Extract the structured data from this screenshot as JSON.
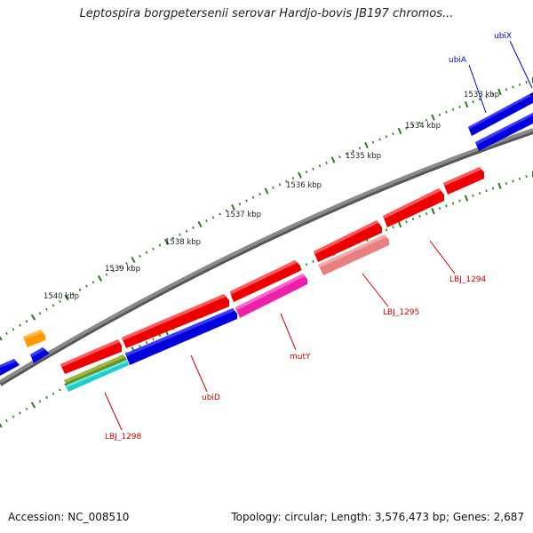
{
  "title": "Leptospira borgpetersenii serovar Hardjo-bovis JB197 chromos...",
  "footer": {
    "accession": "Accession: NC_008510",
    "summary": "Topology: circular; Length: 3,576,473 bp; Genes: 2,687"
  },
  "colors": {
    "backbone": "#808080",
    "tick": "#2a7a1f",
    "label_blue": "#0000cc",
    "label_red": "#cc0000",
    "axis_text": "#222222"
  },
  "scale_labels": [
    "1533 kbp",
    "1534 kbp",
    "1535 kbp",
    "1536 kbp",
    "1537 kbp",
    "1538 kbp",
    "1539 kbp",
    "1540 kbp"
  ],
  "gene_labels": [
    {
      "name": "ubiX",
      "color": "blue"
    },
    {
      "name": "ubiA",
      "color": "blue"
    },
    {
      "name": "LBJ_1294",
      "color": "red"
    },
    {
      "name": "LBJ_1295",
      "color": "red"
    },
    {
      "name": "mutY",
      "color": "red"
    },
    {
      "name": "ubiD",
      "color": "red"
    },
    {
      "name": "LBJ_1298",
      "color": "red"
    }
  ],
  "features": [
    {
      "name": "ubiX",
      "color": "#0000dd"
    },
    {
      "name": "ubiA",
      "color": "#0000dd"
    },
    {
      "name": "ubiA-lower",
      "color": "#0000dd"
    },
    {
      "name": "LBJ_1294-a",
      "color": "#ee0000"
    },
    {
      "name": "LBJ_1294-b",
      "color": "#ee0000"
    },
    {
      "name": "LBJ_1294-c",
      "color": "#ee0000"
    },
    {
      "name": "LBJ_1295",
      "color": "#e88080"
    },
    {
      "name": "red-mid",
      "color": "#ee0000"
    },
    {
      "name": "mutY",
      "color": "#ee22aa"
    },
    {
      "name": "red-long",
      "color": "#ee0000"
    },
    {
      "name": "ubiD",
      "color": "#0000dd"
    },
    {
      "name": "LBJ_1298-red",
      "color": "#ee0000"
    },
    {
      "name": "LBJ_1298-olive",
      "color": "#6f8f20"
    },
    {
      "name": "LBJ_1298-cyan",
      "color": "#22cccc"
    },
    {
      "name": "orange-gene",
      "color": "#ff9900"
    },
    {
      "name": "blue-small-a",
      "color": "#0000dd"
    },
    {
      "name": "blue-small-b",
      "color": "#0000dd"
    }
  ]
}
